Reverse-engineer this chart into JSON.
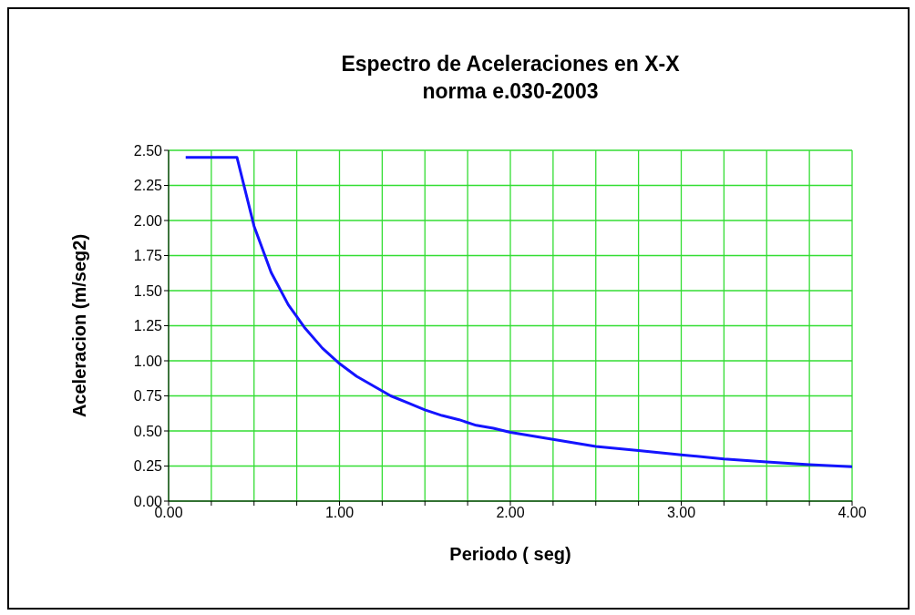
{
  "chart_data": {
    "type": "line",
    "title": "Espectro de Aceleraciones en X-X",
    "subtitle": "norma e.030-2003",
    "xlabel": "Periodo ( seg)",
    "ylabel": "Aceleracion (m/seg2)",
    "series": [
      {
        "color": "#1414ff",
        "x": [
          0.1,
          0.2,
          0.3,
          0.4,
          0.5,
          0.6,
          0.7,
          0.8,
          0.9,
          1.0,
          1.1,
          1.2,
          1.3,
          1.4,
          1.5,
          1.6,
          1.7,
          1.8,
          1.9,
          2.0,
          2.25,
          2.5,
          2.75,
          3.0,
          3.25,
          3.5,
          3.75,
          4.0
        ],
        "values": [
          2.45,
          2.45,
          2.45,
          2.45,
          1.96,
          1.63,
          1.4,
          1.23,
          1.09,
          0.98,
          0.89,
          0.82,
          0.75,
          0.7,
          0.65,
          0.61,
          0.58,
          0.54,
          0.52,
          0.49,
          0.44,
          0.39,
          0.36,
          0.33,
          0.3,
          0.28,
          0.26,
          0.245
        ]
      }
    ],
    "xlim": [
      0,
      4
    ],
    "xticks": [
      {
        "value": 0,
        "label": "0.00"
      },
      {
        "value": 0.25,
        "label": null
      },
      {
        "value": 0.5,
        "label": null
      },
      {
        "value": 0.75,
        "label": null
      },
      {
        "value": 1,
        "label": "1.00"
      },
      {
        "value": 1.25,
        "label": null
      },
      {
        "value": 1.5,
        "label": null
      },
      {
        "value": 1.75,
        "label": null
      },
      {
        "value": 2,
        "label": "2.00"
      },
      {
        "value": 2.25,
        "label": null
      },
      {
        "value": 2.5,
        "label": null
      },
      {
        "value": 2.75,
        "label": null
      },
      {
        "value": 3,
        "label": "3.00"
      },
      {
        "value": 3.25,
        "label": null
      },
      {
        "value": 3.5,
        "label": null
      },
      {
        "value": 3.75,
        "label": null
      },
      {
        "value": 4,
        "label": "4.00"
      }
    ],
    "ylim": [
      0,
      2.5
    ],
    "yticks": [
      {
        "value": 0,
        "label": "0.00"
      },
      {
        "value": 0.25,
        "label": "0.25"
      },
      {
        "value": 0.5,
        "label": "0.50"
      },
      {
        "value": 0.75,
        "label": "0.75"
      },
      {
        "value": 1,
        "label": "1.00"
      },
      {
        "value": 1.25,
        "label": "1.25"
      },
      {
        "value": 1.5,
        "label": "1.50"
      },
      {
        "value": 1.75,
        "label": "1.75"
      },
      {
        "value": 2,
        "label": "2.00"
      },
      {
        "value": 2.25,
        "label": "2.25"
      },
      {
        "value": 2.5,
        "label": "2.50"
      }
    ],
    "grid": true,
    "marker": "none",
    "line_style": "solid",
    "legend": false
  }
}
